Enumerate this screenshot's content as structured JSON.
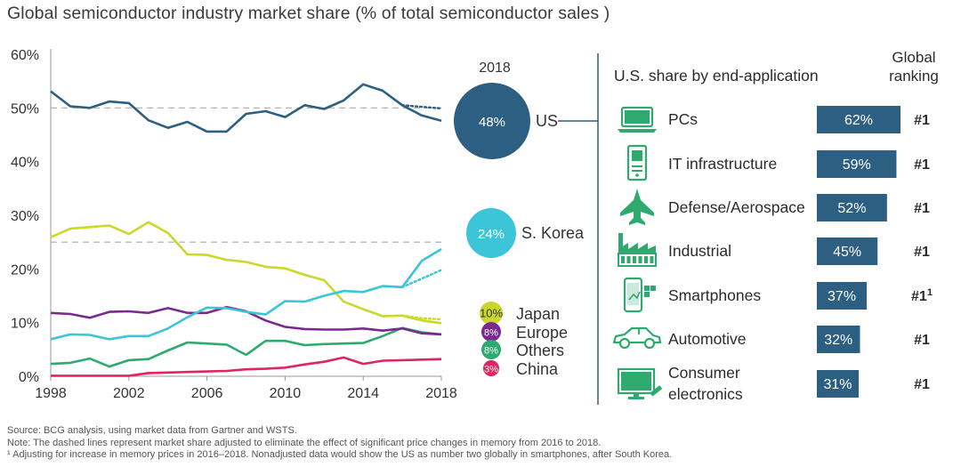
{
  "title": "Global semiconductor industry market share (% of total semiconductor sales )",
  "colors": {
    "us": "#2c5f82",
    "korea": "#3cc4d9",
    "japan": "#c9d82a",
    "europe": "#7a2a8e",
    "others": "#2eaa6f",
    "china": "#e0245e",
    "accent": "#2c5f82",
    "icon": "#2eaa6f",
    "grid": "#c8c8c8"
  },
  "chart_data": {
    "type": "line",
    "x": [
      1998,
      1999,
      2000,
      2001,
      2002,
      2003,
      2004,
      2005,
      2006,
      2007,
      2008,
      2009,
      2010,
      2011,
      2012,
      2013,
      2014,
      2015,
      2016,
      2017,
      2018
    ],
    "xticks": [
      "1998",
      "2002",
      "2006",
      "2010",
      "2014",
      "2018"
    ],
    "yticks": [
      "0%",
      "10%",
      "20%",
      "30%",
      "40%",
      "50%",
      "60%"
    ],
    "ylim": [
      0,
      60
    ],
    "reference_lines": [
      50,
      25
    ],
    "series": [
      {
        "key": "us",
        "name": "US",
        "values": [
          53.1,
          50.3,
          50.0,
          51.2,
          50.9,
          47.7,
          46.3,
          47.4,
          45.6,
          45.6,
          48.9,
          49.4,
          48.3,
          50.5,
          49.8,
          51.4,
          54.4,
          53.2,
          50.5,
          48.6,
          47.6
        ],
        "adjusted": [
          50.5,
          50.2,
          49.9
        ]
      },
      {
        "key": "korea",
        "name": "S. Korea",
        "values": [
          6.9,
          7.8,
          7.7,
          6.9,
          7.5,
          7.5,
          8.9,
          11.0,
          12.8,
          12.7,
          12.0,
          11.5,
          14.0,
          13.9,
          15.0,
          15.9,
          15.7,
          16.8,
          16.6,
          21.5,
          23.7
        ],
        "adjusted": [
          16.6,
          18.2,
          19.8
        ]
      },
      {
        "key": "japan",
        "name": "Japan",
        "values": [
          25.9,
          27.5,
          27.8,
          28.1,
          26.5,
          28.7,
          26.7,
          22.7,
          22.6,
          21.7,
          21.3,
          20.4,
          20.1,
          18.9,
          17.9,
          13.9,
          12.5,
          11.2,
          11.3,
          10.4,
          9.9
        ],
        "adjusted": [
          11.3,
          10.8,
          10.6
        ]
      },
      {
        "key": "europe",
        "name": "Europe",
        "values": [
          11.8,
          11.6,
          10.9,
          12.0,
          12.1,
          11.8,
          12.7,
          11.8,
          11.8,
          12.9,
          12.1,
          10.4,
          9.2,
          8.8,
          8.7,
          8.7,
          8.9,
          8.5,
          8.9,
          8.0,
          7.8
        ]
      },
      {
        "key": "others",
        "name": "Others",
        "values": [
          2.3,
          2.5,
          3.3,
          1.8,
          3.0,
          3.2,
          4.8,
          6.3,
          6.1,
          5.9,
          4.0,
          6.6,
          6.6,
          5.8,
          6.0,
          6.1,
          6.2,
          7.5,
          9.0,
          8.2,
          7.8
        ]
      },
      {
        "key": "china",
        "name": "China",
        "values": [
          0.1,
          0.1,
          0.1,
          0.1,
          0.1,
          0.6,
          0.7,
          0.8,
          0.9,
          1.0,
          1.3,
          1.4,
          1.6,
          2.2,
          2.7,
          3.5,
          2.3,
          2.9,
          3.0,
          3.1,
          3.2
        ]
      }
    ],
    "year_2018": {
      "label": "2018",
      "bubbles": [
        {
          "key": "us",
          "name": "US",
          "value": "48%"
        },
        {
          "key": "korea",
          "name": "S. Korea",
          "value": "24%"
        },
        {
          "key": "japan",
          "name": "Japan",
          "value": "10%"
        },
        {
          "key": "europe",
          "name": "Europe",
          "value": "8%"
        },
        {
          "key": "others",
          "name": "Others",
          "value": "8%"
        },
        {
          "key": "china",
          "name": "China",
          "value": "3%"
        }
      ]
    }
  },
  "us_panel": {
    "heading": "U.S. share by end-application",
    "ranking_heading": [
      "Global",
      "ranking"
    ],
    "applications": [
      {
        "name": [
          "PCs"
        ],
        "icon": "laptop-icon",
        "share": 62,
        "share_label": "62%",
        "rank": "#1",
        "rank_sup": ""
      },
      {
        "name": [
          "IT infrastructure"
        ],
        "icon": "server-icon",
        "share": 59,
        "share_label": "59%",
        "rank": "#1",
        "rank_sup": ""
      },
      {
        "name": [
          "Defense/Aerospace"
        ],
        "icon": "jet-icon",
        "share": 52,
        "share_label": "52%",
        "rank": "#1",
        "rank_sup": ""
      },
      {
        "name": [
          "Industrial"
        ],
        "icon": "factory-icon",
        "share": 45,
        "share_label": "45%",
        "rank": "#1",
        "rank_sup": ""
      },
      {
        "name": [
          "Smartphones"
        ],
        "icon": "smartphone-icon",
        "share": 37,
        "share_label": "37%",
        "rank": "#1",
        "rank_sup": "1"
      },
      {
        "name": [
          "Automotive"
        ],
        "icon": "car-icon",
        "share": 32,
        "share_label": "32%",
        "rank": "#1",
        "rank_sup": ""
      },
      {
        "name": [
          "Consumer",
          "electronics"
        ],
        "icon": "tv-icon",
        "share": 31,
        "share_label": "31%",
        "rank": "#1",
        "rank_sup": ""
      }
    ]
  },
  "footnotes": {
    "source": "Source: BCG analysis, using market data from Gartner and WSTS.",
    "note": "Note: The dashed lines represent market share adjusted to eliminate the effect of significant price changes in memory from 2016 to 2018.",
    "footnote1": "¹ Adjusting for increase in memory prices in 2016–2018. Nonadjusted data would show the US as number two globally in smartphones, after South Korea."
  }
}
